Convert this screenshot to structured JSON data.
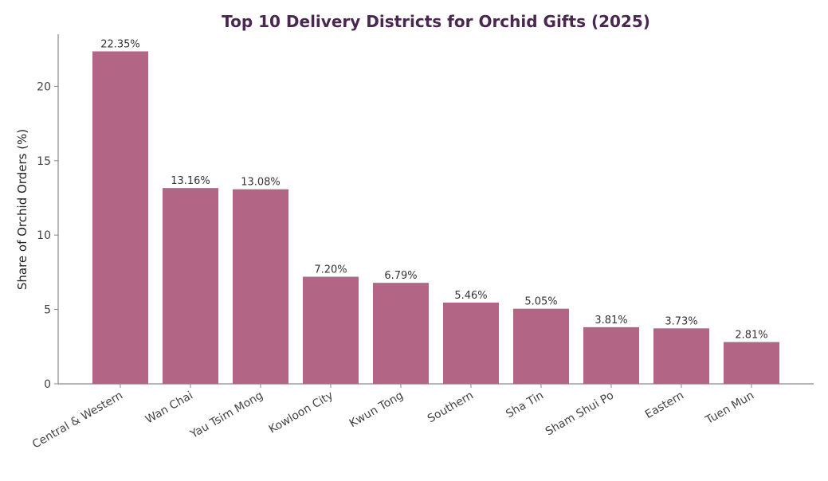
{
  "chart_data": {
    "type": "bar",
    "title": "Top 10 Delivery Districts for Orchid Gifts (2025)",
    "xlabel": "",
    "ylabel": "Share of Orchid Orders (%)",
    "ylim": [
      0,
      23.5
    ],
    "yticks": [
      "0",
      "5",
      "10",
      "15",
      "20"
    ],
    "categories": [
      "Central & Western",
      "Wan Chai",
      "Yau Tsim Mong",
      "Kowloon City",
      "Kwun Tong",
      "Southern",
      "Sha Tin",
      "Sham Shui Po",
      "Eastern",
      "Tuen Mun"
    ],
    "values": [
      22.35,
      13.16,
      13.08,
      7.2,
      6.79,
      5.46,
      5.05,
      3.81,
      3.73,
      2.81
    ],
    "data_labels": [
      "22.35%",
      "13.16%",
      "13.08%",
      "7.20%",
      "6.79%",
      "5.46%",
      "5.05%",
      "3.81%",
      "3.73%",
      "2.81%"
    ],
    "grid": false,
    "legend": "none",
    "colors": {
      "bar": "#b36586",
      "title": "#4a2750",
      "axis": "#888888"
    }
  }
}
